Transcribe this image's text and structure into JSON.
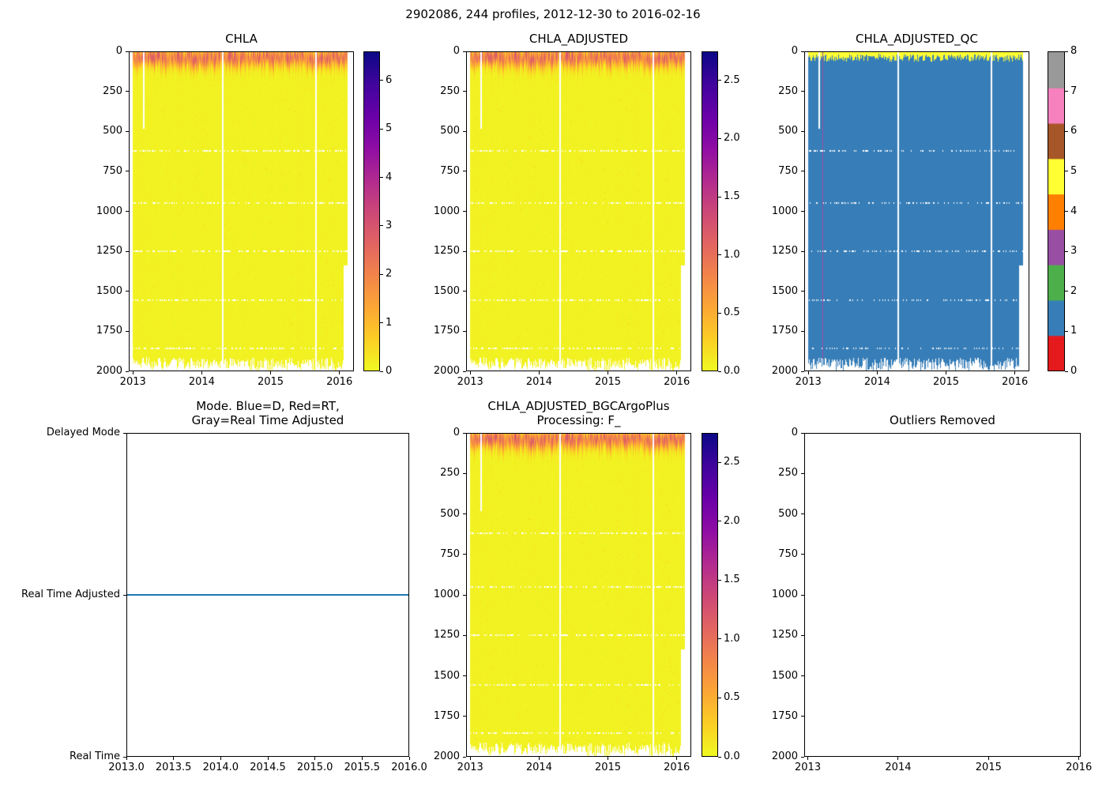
{
  "figure": {
    "title": "2902086, 244 profiles, 2012-12-30 to 2016-02-16"
  },
  "colors": {
    "axis": "#000000",
    "background": "#ffffff",
    "mode_line": "#1f77b4",
    "qc_palette": {
      "0": "#e41a1c",
      "1": "#377eb8",
      "2": "#4daf4a",
      "3": "#984ea3",
      "4": "#ff7f00",
      "5": "#ffff33",
      "6": "#a65628",
      "7": "#f781bf",
      "8": "#999999"
    }
  },
  "chart_data": [
    {
      "id": "chla",
      "type": "heatmap",
      "title": "CHLA",
      "x_range": [
        2012.94,
        2016.21
      ],
      "y_range": [
        0,
        2000
      ],
      "y_axis_inverted": true,
      "x_ticks": {
        "values": [
          2013,
          2014,
          2015,
          2016
        ],
        "labels": [
          "2013",
          "2014",
          "2015",
          "2016"
        ]
      },
      "y_ticks": {
        "values": [
          0,
          250,
          500,
          750,
          1000,
          1250,
          1500,
          1750,
          2000
        ],
        "labels": [
          "0",
          "250",
          "500",
          "750",
          "1000",
          "1250",
          "1500",
          "1750",
          "2000"
        ]
      },
      "colormap": "plasma_r",
      "colorbar": {
        "vmin": 0,
        "vmax": 6.6,
        "ticks": [
          0,
          1,
          2,
          3,
          4,
          5,
          6
        ],
        "labels": [
          "0",
          "1",
          "2",
          "3",
          "4",
          "5",
          "6"
        ]
      },
      "data_start": 2012.99,
      "data_end": 2016.13,
      "profiles": 244,
      "summary": "Chlorophyll-a vs depth/time: background ~0.05-0.15 (yellow), elevated 0.5-3 in upper ~120 m (orange band), white = missing data",
      "pattern": {
        "gaps": [
          {
            "x": 2013.15,
            "y0": 0,
            "y1": 480,
            "w": 0.012
          },
          {
            "x": 2014.3,
            "y0": 0,
            "y1": 2000,
            "w": 0.01
          },
          {
            "x": 2015.67,
            "y0": 0,
            "y1": 2000,
            "w": 0.01
          },
          {
            "x": 2016.1,
            "y0": 1340,
            "y1": 2000,
            "w": 0.03
          }
        ],
        "missing_rows_m": [
          620,
          950,
          1250,
          1560,
          1860
        ],
        "deep_cutoff_m": [
          1918,
          2000
        ]
      },
      "render": {
        "seed": 3,
        "surface_t_min": 0.2,
        "surface_t_max": 0.45,
        "base_t": 0.016
      }
    },
    {
      "id": "chla_adjusted",
      "type": "heatmap",
      "title": "CHLA_ADJUSTED",
      "x_range": [
        2012.94,
        2016.21
      ],
      "y_range": [
        0,
        2000
      ],
      "y_axis_inverted": true,
      "x_ticks": {
        "values": [
          2013,
          2014,
          2015,
          2016
        ],
        "labels": [
          "2013",
          "2014",
          "2015",
          "2016"
        ]
      },
      "y_ticks": {
        "values": [
          0,
          250,
          500,
          750,
          1000,
          1250,
          1500,
          1750,
          2000
        ],
        "labels": [
          "0",
          "250",
          "500",
          "750",
          "1000",
          "1250",
          "1500",
          "1750",
          "2000"
        ]
      },
      "colormap": "plasma_r",
      "colorbar": {
        "vmin": 0,
        "vmax": 2.75,
        "ticks": [
          0,
          0.5,
          1.0,
          1.5,
          2.0,
          2.5
        ],
        "labels": [
          "0.0",
          "0.5",
          "1.0",
          "1.5",
          "2.0",
          "2.5"
        ]
      },
      "data_start": 2012.99,
      "data_end": 2016.13,
      "profiles": 244,
      "summary": "Adjusted chlorophyll-a, same structure as CHLA with ~0-2.5 range",
      "pattern": {
        "gaps": [
          {
            "x": 2013.15,
            "y0": 0,
            "y1": 480,
            "w": 0.012
          },
          {
            "x": 2014.3,
            "y0": 0,
            "y1": 2000,
            "w": 0.01
          },
          {
            "x": 2015.67,
            "y0": 0,
            "y1": 2000,
            "w": 0.01
          },
          {
            "x": 2016.1,
            "y0": 1340,
            "y1": 2000,
            "w": 0.03
          }
        ],
        "missing_rows_m": [
          620,
          950,
          1250,
          1560,
          1860
        ],
        "deep_cutoff_m": [
          1918,
          2000
        ]
      },
      "render": {
        "seed": 3,
        "surface_t_min": 0.2,
        "surface_t_max": 0.45,
        "base_t": 0.016
      }
    },
    {
      "id": "chla_adjusted_qc",
      "type": "heatmap_categorical",
      "title": "CHLA_ADJUSTED_QC",
      "x_range": [
        2012.94,
        2016.21
      ],
      "y_range": [
        0,
        2000
      ],
      "y_axis_inverted": true,
      "x_ticks": {
        "values": [
          2013,
          2014,
          2015,
          2016
        ],
        "labels": [
          "2013",
          "2014",
          "2015",
          "2016"
        ]
      },
      "y_ticks": {
        "values": [
          0,
          250,
          500,
          750,
          1000,
          1250,
          1500,
          1750,
          2000
        ],
        "labels": [
          "0",
          "250",
          "500",
          "750",
          "1000",
          "1250",
          "1500",
          "1750",
          "2000"
        ]
      },
      "colorbar": {
        "categories": [
          0,
          1,
          2,
          3,
          4,
          5,
          6,
          7,
          8
        ],
        "ticks": [
          0,
          1,
          2,
          3,
          4,
          5,
          6,
          7,
          8
        ],
        "labels": [
          "0",
          "1",
          "2",
          "3",
          "4",
          "5",
          "6",
          "7",
          "8"
        ]
      },
      "data_start": 2012.99,
      "data_end": 2016.13,
      "profiles": 244,
      "summary": "QC flags: mostly 1 (blue, good) below surface; flag 5 (yellow) in upper ~15-60 m; one profile flagged 3 (purple) near 2013.2; white = missing",
      "pattern": {
        "fill_qc": 1,
        "surface_qc": 5,
        "surface_band_m": [
          12,
          60
        ],
        "anomaly_lines": [
          {
            "x": 2013.2,
            "qc": 3,
            "w": 0.008
          }
        ],
        "gaps": [
          {
            "x": 2013.15,
            "y0": 0,
            "y1": 480,
            "w": 0.012
          },
          {
            "x": 2014.3,
            "y0": 0,
            "y1": 2000,
            "w": 0.01
          },
          {
            "x": 2015.67,
            "y0": 0,
            "y1": 2000,
            "w": 0.01
          },
          {
            "x": 2016.1,
            "y0": 1340,
            "y1": 2000,
            "w": 0.03
          }
        ],
        "missing_rows_m": [
          620,
          950,
          1250,
          1560,
          1860
        ],
        "deep_cutoff_m": [
          1918,
          2000
        ]
      }
    },
    {
      "id": "mode",
      "type": "line",
      "title": "Mode. Blue=D, Red=RT,\nGray=Real Time Adjusted",
      "x_range": [
        2013.0,
        2016.0
      ],
      "x_ticks": {
        "values": [
          2013.0,
          2013.5,
          2014.0,
          2014.5,
          2015.0,
          2015.5,
          2016.0
        ],
        "labels": [
          "2013.0",
          "2013.5",
          "2014.0",
          "2014.5",
          "2015.0",
          "2015.5",
          "2016.0"
        ]
      },
      "y_categories": [
        "Real Time",
        "Real Time Adjusted",
        "Delayed Mode"
      ],
      "series": [
        {
          "name": "data-mode",
          "color": "#1f77b4",
          "y_category": "Real Time Adjusted",
          "x_start": 2013.0,
          "x_end": 2016.0
        }
      ],
      "summary": "All 244 profiles are in Real Time Adjusted mode for the full record"
    },
    {
      "id": "bgc",
      "type": "heatmap",
      "title": "CHLA_ADJUSTED_BGCArgoPlus\nProcessing: F_",
      "x_range": [
        2012.94,
        2016.21
      ],
      "y_range": [
        0,
        2000
      ],
      "y_axis_inverted": true,
      "x_ticks": {
        "values": [
          2013,
          2014,
          2015,
          2016
        ],
        "labels": [
          "2013",
          "2014",
          "2015",
          "2016"
        ]
      },
      "y_ticks": {
        "values": [
          0,
          250,
          500,
          750,
          1000,
          1250,
          1500,
          1750,
          2000
        ],
        "labels": [
          "0",
          "250",
          "500",
          "750",
          "1000",
          "1250",
          "1500",
          "1750",
          "2000"
        ]
      },
      "colormap": "plasma_r",
      "colorbar": {
        "vmin": 0,
        "vmax": 2.75,
        "ticks": [
          0,
          0.5,
          1.0,
          1.5,
          2.0,
          2.5
        ],
        "labels": [
          "0.0",
          "0.5",
          "1.0",
          "1.5",
          "2.0",
          "2.5"
        ]
      },
      "data_start": 2012.99,
      "data_end": 2016.13,
      "profiles": 244,
      "summary": "BGC-Argo-Plus reprocessed adjusted chlorophyll-a, visually identical to CHLA_ADJUSTED",
      "pattern": {
        "gaps": [
          {
            "x": 2013.15,
            "y0": 0,
            "y1": 480,
            "w": 0.012
          },
          {
            "x": 2014.3,
            "y0": 0,
            "y1": 2000,
            "w": 0.01
          },
          {
            "x": 2015.67,
            "y0": 0,
            "y1": 2000,
            "w": 0.01
          },
          {
            "x": 2016.1,
            "y0": 1340,
            "y1": 2000,
            "w": 0.03
          }
        ],
        "missing_rows_m": [
          620,
          950,
          1250,
          1560,
          1860
        ],
        "deep_cutoff_m": [
          1918,
          2000
        ]
      },
      "render": {
        "seed": 3,
        "surface_t_min": 0.2,
        "surface_t_max": 0.45,
        "base_t": 0.016
      }
    },
    {
      "id": "outliers",
      "type": "empty",
      "title": "Outliers Removed",
      "x_range": [
        2012.96,
        2016.02
      ],
      "y_range": [
        0,
        2000
      ],
      "y_axis_inverted": true,
      "x_ticks": {
        "values": [
          2013,
          2014,
          2015,
          2016
        ],
        "labels": [
          "2013",
          "2014",
          "2015",
          "2016"
        ]
      },
      "y_ticks": {
        "values": [
          0,
          250,
          500,
          750,
          1000,
          1250,
          1500,
          1750,
          2000
        ],
        "labels": [
          "0",
          "250",
          "500",
          "750",
          "1000",
          "1250",
          "1500",
          "1750",
          "2000"
        ]
      },
      "summary": "No outliers removed; axes empty"
    }
  ]
}
